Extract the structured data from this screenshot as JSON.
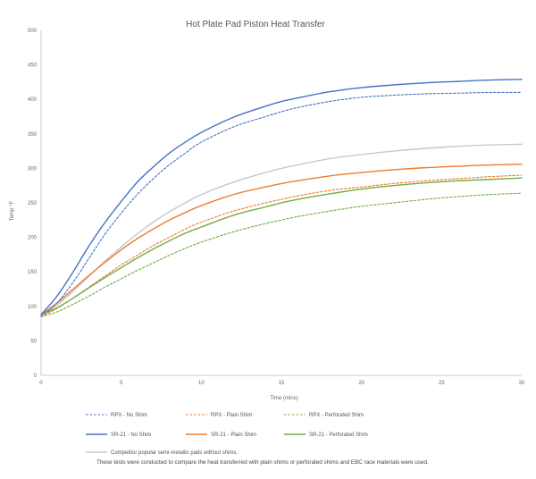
{
  "chart_data": {
    "type": "line",
    "title": "Hot Plate Pad Piston Heat Transfer",
    "xlabel": "Time (mins)",
    "ylabel": "Temp °F",
    "xlim": [
      0,
      30
    ],
    "ylim": [
      0,
      500
    ],
    "xticks": [
      0,
      5,
      10,
      15,
      20,
      25,
      30
    ],
    "yticks": [
      0,
      50,
      100,
      150,
      200,
      250,
      300,
      350,
      400,
      450,
      500
    ],
    "grid": false,
    "legend_position": "bottom",
    "series": [
      {
        "name": "RPX - No Shim",
        "color": "#4472c4",
        "dash": true,
        "x": [
          0,
          1,
          2,
          3,
          4,
          5,
          6,
          7,
          8,
          9,
          10,
          12,
          14,
          15,
          16,
          18,
          20,
          22,
          24,
          26,
          28,
          30
        ],
        "y": [
          85,
          105,
          135,
          170,
          205,
          235,
          262,
          285,
          305,
          322,
          338,
          360,
          375,
          382,
          388,
          397,
          403,
          406,
          408,
          409,
          410,
          410
        ]
      },
      {
        "name": "RPX - Plain Shim",
        "color": "#ed7d31",
        "dash": true,
        "x": [
          0,
          1,
          2,
          3,
          4,
          5,
          6,
          7,
          8,
          9,
          10,
          12,
          14,
          15,
          16,
          18,
          20,
          22,
          24,
          26,
          28,
          30
        ],
        "y": [
          85,
          97,
          112,
          128,
          144,
          160,
          174,
          188,
          200,
          212,
          222,
          238,
          250,
          255,
          260,
          268,
          273,
          278,
          282,
          285,
          288,
          290
        ]
      },
      {
        "name": "RPX - Perforated Shim",
        "color": "#70ad47",
        "dash": true,
        "x": [
          0,
          1,
          2,
          3,
          4,
          5,
          6,
          7,
          8,
          9,
          10,
          12,
          14,
          15,
          16,
          18,
          20,
          22,
          24,
          26,
          28,
          30
        ],
        "y": [
          85,
          92,
          103,
          115,
          128,
          140,
          152,
          163,
          174,
          184,
          193,
          208,
          220,
          225,
          230,
          238,
          245,
          250,
          255,
          259,
          262,
          264
        ]
      },
      {
        "name": "SR-21 - No Shim",
        "color": "#4472c4",
        "dash": false,
        "x": [
          0,
          1,
          2,
          3,
          4,
          5,
          6,
          7,
          8,
          9,
          10,
          12,
          14,
          15,
          16,
          18,
          20,
          22,
          24,
          26,
          28,
          30
        ],
        "y": [
          88,
          115,
          150,
          188,
          222,
          252,
          280,
          302,
          322,
          338,
          352,
          374,
          390,
          397,
          402,
          411,
          417,
          421,
          424,
          426,
          428,
          429
        ]
      },
      {
        "name": "SR-21 - Plain Shim",
        "color": "#ed7d31",
        "dash": false,
        "x": [
          0,
          1,
          2,
          3,
          4,
          5,
          6,
          7,
          8,
          9,
          10,
          12,
          14,
          15,
          16,
          18,
          20,
          22,
          24,
          26,
          28,
          30
        ],
        "y": [
          88,
          105,
          125,
          145,
          164,
          182,
          198,
          212,
          225,
          236,
          246,
          262,
          273,
          278,
          282,
          289,
          294,
          298,
          301,
          303,
          305,
          306
        ]
      },
      {
        "name": "SR-21 - Perforated Shim",
        "color": "#70ad47",
        "dash": false,
        "x": [
          0,
          1,
          2,
          3,
          4,
          5,
          6,
          7,
          8,
          9,
          10,
          12,
          14,
          15,
          16,
          18,
          20,
          22,
          24,
          26,
          28,
          30
        ],
        "y": [
          88,
          98,
          112,
          127,
          142,
          156,
          170,
          183,
          195,
          206,
          215,
          232,
          244,
          250,
          255,
          263,
          270,
          275,
          279,
          282,
          284,
          286
        ]
      },
      {
        "name": "Competitor popular semi-metallic pads without shims.",
        "color": "#c8c8c8",
        "dash": false,
        "x": [
          0,
          1,
          2,
          3,
          4,
          5,
          6,
          7,
          8,
          9,
          10,
          12,
          14,
          15,
          16,
          18,
          20,
          22,
          24,
          26,
          28,
          30
        ],
        "y": [
          88,
          102,
          122,
          144,
          166,
          186,
          205,
          222,
          237,
          250,
          262,
          280,
          294,
          300,
          305,
          314,
          320,
          325,
          329,
          332,
          334,
          335
        ]
      }
    ]
  },
  "note": "These tests were conducted to  compare the heat transferred with plain shims or perforated shims and EBC race materials were used."
}
